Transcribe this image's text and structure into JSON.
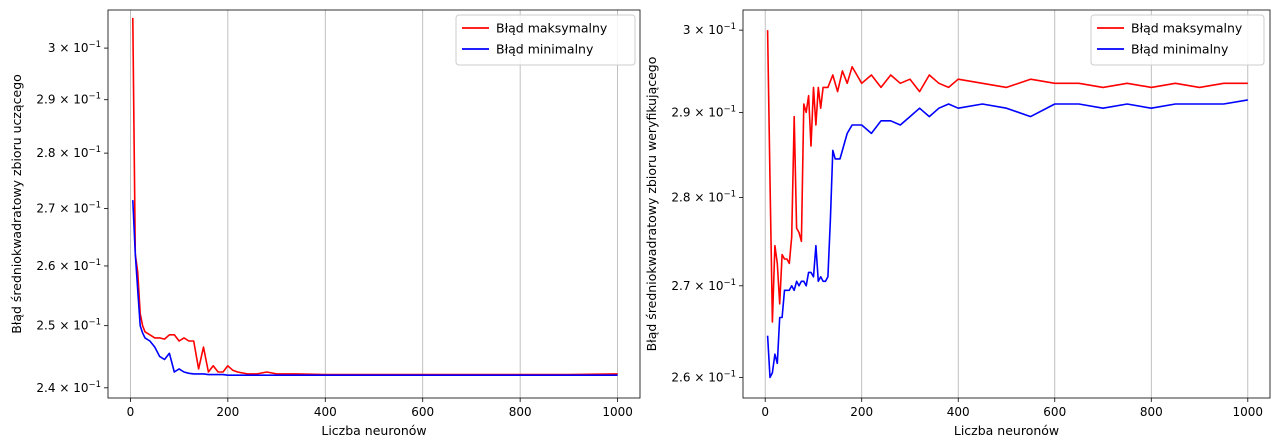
{
  "chart_data": [
    {
      "type": "line",
      "title": "",
      "xlabel": "Liczba neuronów",
      "ylabel": "Błąd średniokwadratowy zbioru uczącego",
      "yscale": "log",
      "xlim": [
        -46,
        1046
      ],
      "ylim": [
        0.2384,
        0.3076
      ],
      "x_ticks": [
        0,
        200,
        400,
        600,
        800,
        1000
      ],
      "x_tick_labels": [
        "0",
        "200",
        "400",
        "600",
        "800",
        "1000"
      ],
      "y_ticks": [
        0.24,
        0.25,
        0.26,
        0.27,
        0.28,
        0.29,
        0.3
      ],
      "y_tick_mantissas": [
        "2.4",
        "2.5",
        "2.6",
        "2.7",
        "2.8",
        "2.9",
        "3"
      ],
      "y_tick_base": "10",
      "y_tick_exponent": "−1",
      "grid": "x",
      "legend_position": "top-right",
      "series": [
        {
          "name": "Błąd maksymalny",
          "color": "#ff0000",
          "x": [
            5,
            10,
            15,
            20,
            25,
            30,
            40,
            50,
            60,
            70,
            80,
            90,
            100,
            110,
            120,
            130,
            140,
            150,
            160,
            170,
            180,
            190,
            200,
            210,
            220,
            240,
            260,
            280,
            300,
            340,
            400,
            500,
            600,
            700,
            800,
            900,
            1000
          ],
          "y": [
            0.306,
            0.262,
            0.259,
            0.252,
            0.25,
            0.249,
            0.2485,
            0.248,
            0.248,
            0.2478,
            0.2485,
            0.2485,
            0.2475,
            0.248,
            0.2475,
            0.2475,
            0.243,
            0.2465,
            0.2425,
            0.2435,
            0.2425,
            0.2425,
            0.2435,
            0.2428,
            0.2425,
            0.2422,
            0.2422,
            0.2425,
            0.2422,
            0.2422,
            0.2421,
            0.2421,
            0.2421,
            0.2421,
            0.2421,
            0.2421,
            0.2422
          ]
        },
        {
          "name": "Błąd minimalny",
          "color": "#0000ff",
          "x": [
            5,
            10,
            15,
            20,
            25,
            30,
            40,
            50,
            60,
            70,
            80,
            90,
            100,
            110,
            120,
            130,
            140,
            150,
            160,
            170,
            180,
            190,
            200,
            220,
            240,
            260,
            280,
            300,
            340,
            400,
            500,
            600,
            700,
            800,
            900,
            1000
          ],
          "y": [
            0.2715,
            0.262,
            0.256,
            0.25,
            0.2488,
            0.248,
            0.2475,
            0.2465,
            0.245,
            0.2445,
            0.2455,
            0.2425,
            0.243,
            0.2425,
            0.2423,
            0.2422,
            0.2422,
            0.2422,
            0.2421,
            0.2421,
            0.2421,
            0.2421,
            0.242,
            0.242,
            0.242,
            0.242,
            0.242,
            0.242,
            0.242,
            0.242,
            0.242,
            0.242,
            0.242,
            0.242,
            0.242,
            0.242
          ]
        }
      ]
    },
    {
      "type": "line",
      "title": "",
      "xlabel": "Liczba neuronów",
      "ylabel": "Błąd średniokwadratowy zbioru weryfikującego",
      "yscale": "log",
      "xlim": [
        -46,
        1046
      ],
      "ylim": [
        0.2578,
        0.3025
      ],
      "x_ticks": [
        0,
        200,
        400,
        600,
        800,
        1000
      ],
      "x_tick_labels": [
        "0",
        "200",
        "400",
        "600",
        "800",
        "1000"
      ],
      "y_ticks": [
        0.26,
        0.27,
        0.28,
        0.29,
        0.3
      ],
      "y_tick_mantissas": [
        "2.6",
        "2.7",
        "2.8",
        "2.9",
        "3"
      ],
      "y_tick_base": "10",
      "y_tick_exponent": "−1",
      "grid": "x",
      "legend_position": "top-right",
      "series": [
        {
          "name": "Błąd maksymalny",
          "color": "#ff0000",
          "x": [
            5,
            10,
            15,
            20,
            25,
            30,
            35,
            40,
            45,
            50,
            55,
            60,
            65,
            70,
            75,
            80,
            85,
            90,
            95,
            100,
            105,
            110,
            115,
            120,
            130,
            140,
            150,
            160,
            170,
            180,
            190,
            200,
            220,
            240,
            260,
            280,
            300,
            320,
            340,
            360,
            380,
            400,
            450,
            500,
            550,
            600,
            650,
            700,
            750,
            800,
            850,
            900,
            950,
            1000
          ],
          "y": [
            0.3,
            0.282,
            0.266,
            0.2745,
            0.2725,
            0.268,
            0.2735,
            0.273,
            0.273,
            0.2725,
            0.2755,
            0.2895,
            0.2765,
            0.276,
            0.275,
            0.291,
            0.29,
            0.292,
            0.286,
            0.293,
            0.2885,
            0.293,
            0.2905,
            0.293,
            0.293,
            0.2945,
            0.2925,
            0.295,
            0.2935,
            0.2955,
            0.2945,
            0.2935,
            0.2945,
            0.293,
            0.2945,
            0.2935,
            0.294,
            0.2925,
            0.2945,
            0.2935,
            0.293,
            0.294,
            0.2935,
            0.293,
            0.294,
            0.2935,
            0.2935,
            0.293,
            0.2935,
            0.293,
            0.2935,
            0.293,
            0.2935,
            0.2935
          ]
        },
        {
          "name": "Błąd minimalny",
          "color": "#0000ff",
          "x": [
            5,
            10,
            15,
            20,
            25,
            30,
            35,
            40,
            45,
            50,
            55,
            60,
            65,
            70,
            75,
            80,
            85,
            90,
            95,
            100,
            105,
            110,
            115,
            120,
            125,
            130,
            135,
            140,
            145,
            150,
            155,
            160,
            170,
            180,
            200,
            220,
            240,
            260,
            280,
            300,
            320,
            340,
            360,
            380,
            400,
            450,
            500,
            550,
            600,
            650,
            700,
            750,
            800,
            850,
            900,
            950,
            1000
          ],
          "y": [
            0.2645,
            0.26,
            0.2605,
            0.2625,
            0.2615,
            0.2665,
            0.2665,
            0.2695,
            0.2695,
            0.2695,
            0.27,
            0.2695,
            0.2705,
            0.27,
            0.2705,
            0.2705,
            0.27,
            0.2715,
            0.2715,
            0.271,
            0.2745,
            0.2705,
            0.271,
            0.2705,
            0.2705,
            0.271,
            0.2775,
            0.2855,
            0.2845,
            0.2845,
            0.2845,
            0.2855,
            0.2875,
            0.2885,
            0.2885,
            0.2875,
            0.289,
            0.289,
            0.2885,
            0.2895,
            0.2905,
            0.2895,
            0.2905,
            0.291,
            0.2905,
            0.291,
            0.2905,
            0.2895,
            0.291,
            0.291,
            0.2905,
            0.291,
            0.2905,
            0.291,
            0.291,
            0.291,
            0.2915
          ]
        }
      ]
    }
  ]
}
